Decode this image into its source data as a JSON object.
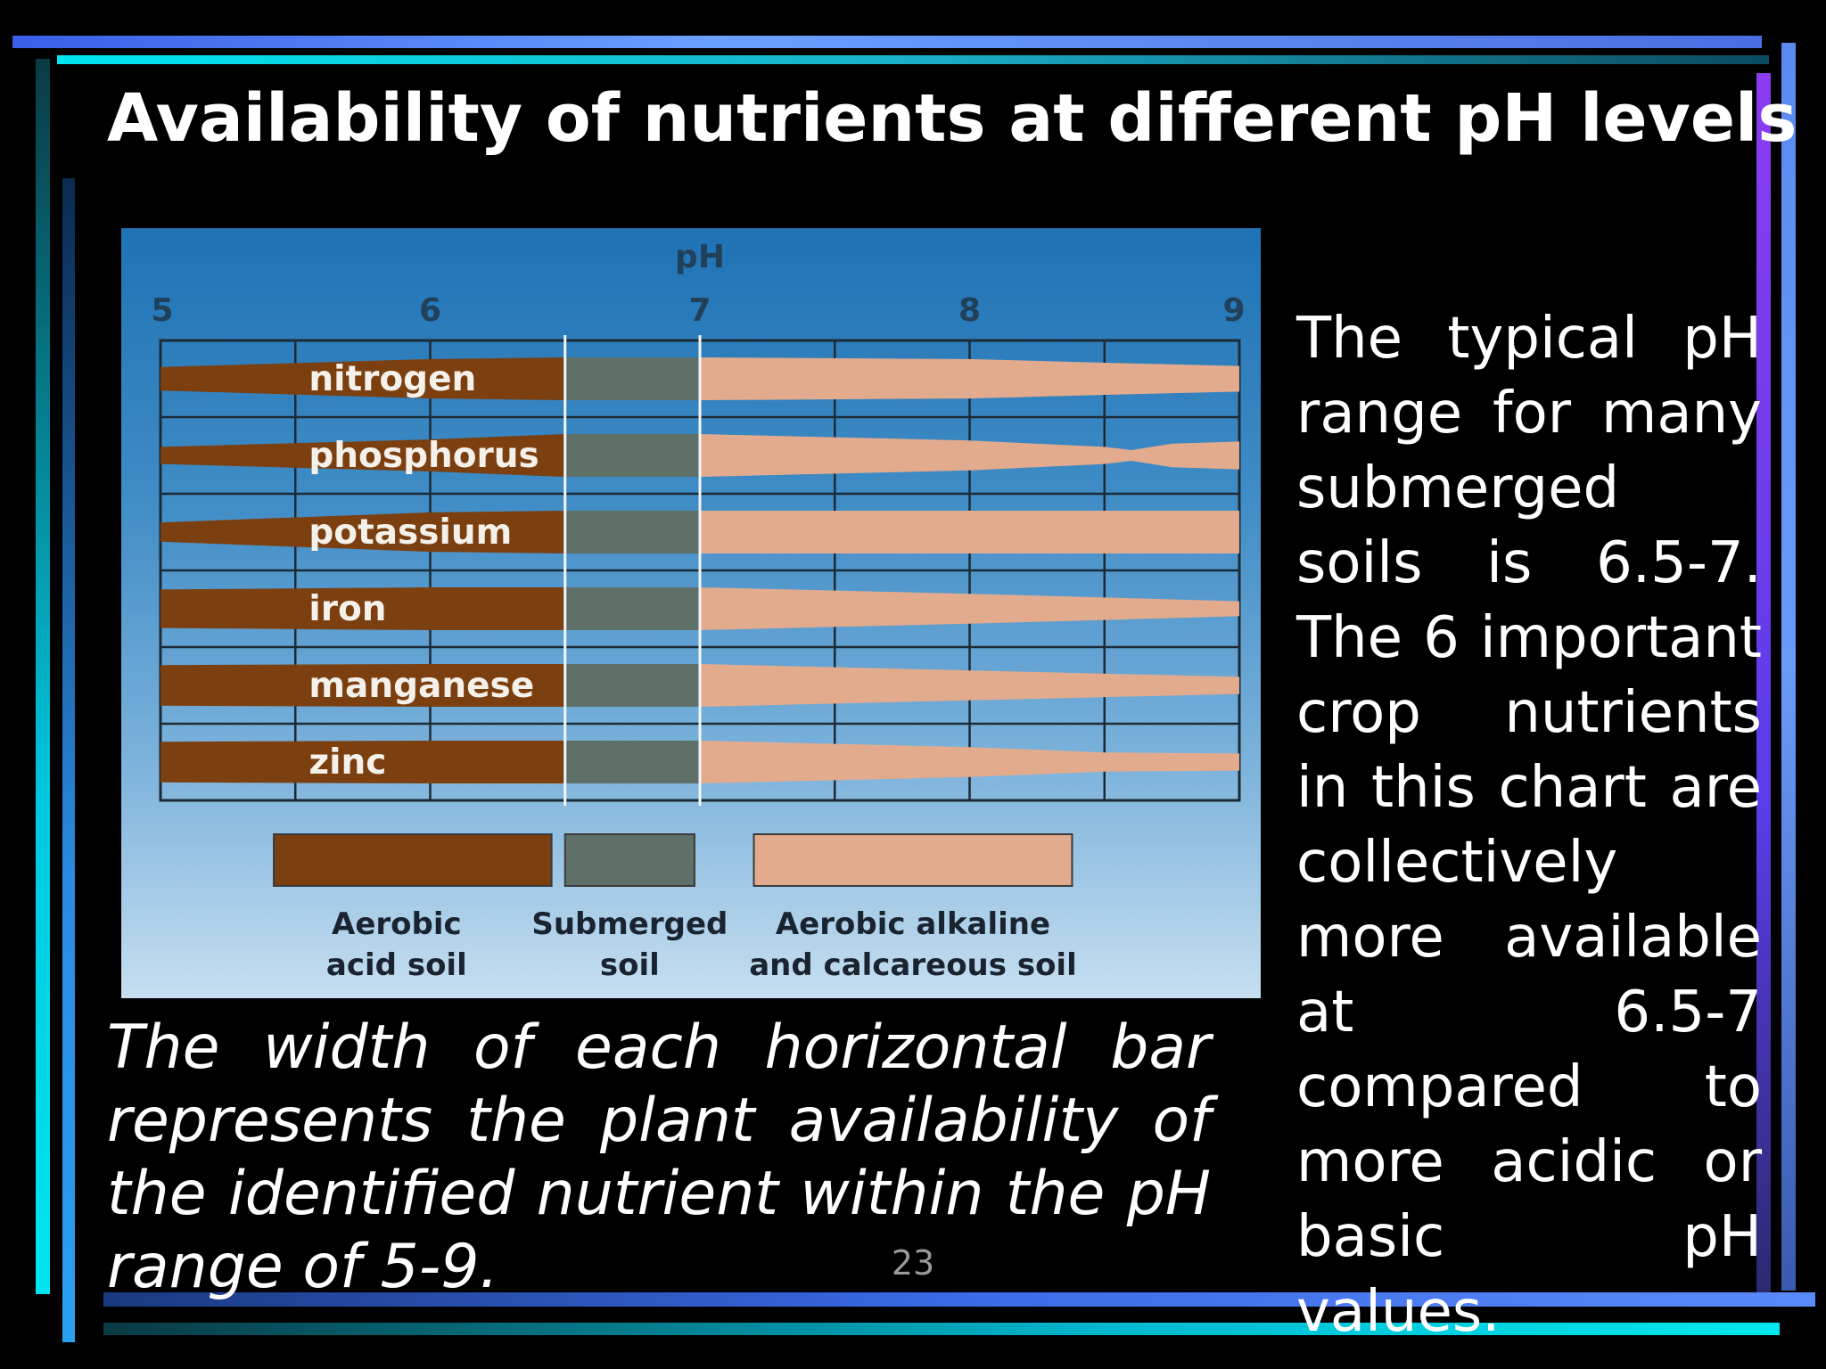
{
  "slide": {
    "title": "Availability of nutrients at different pH levels",
    "caption": "The width of each horizontal bar represents the plant availability of the identified nutrient within the pH range of 5-9.",
    "side_text": "The typical pH range for many submerged soils is 6.5-7. The 6 important crop nutrients in this chart are collectively more available at 6.5-7 compared to more acidic or basic pH values.",
    "slide_number": "23"
  },
  "colors": {
    "acid": "#7b3f10",
    "submerged": "#5e7068",
    "alkaline": "#e3ab8d",
    "grid": "#1c2a36"
  },
  "chart_data": {
    "type": "bar",
    "xlabel": "pH",
    "x_ticks": [
      "5",
      "6",
      "7",
      "8",
      "9"
    ],
    "xlim": [
      5,
      9
    ],
    "boundaries": [
      6.5,
      7
    ],
    "nutrients": [
      {
        "label": "nitrogen",
        "x": [
          5,
          6,
          6.5,
          7,
          8,
          8.5,
          9
        ],
        "w": [
          0.55,
          0.92,
          1.0,
          1.0,
          0.92,
          0.75,
          0.6
        ]
      },
      {
        "label": "phosphorus",
        "x": [
          5,
          6,
          6.5,
          7,
          8,
          8.5,
          8.6,
          8.75,
          9
        ],
        "w": [
          0.4,
          0.75,
          1.0,
          1.0,
          0.7,
          0.4,
          0.25,
          0.55,
          0.65
        ]
      },
      {
        "label": "potassium",
        "x": [
          5,
          6,
          6.5,
          7,
          8,
          9
        ],
        "w": [
          0.45,
          0.92,
          1.0,
          1.0,
          1.0,
          1.0
        ]
      },
      {
        "label": "iron",
        "x": [
          5,
          6,
          6.5,
          7,
          8,
          9
        ],
        "w": [
          0.9,
          1.0,
          1.0,
          1.0,
          0.7,
          0.35
        ]
      },
      {
        "label": "manganese",
        "x": [
          5,
          6,
          6.5,
          7,
          8,
          9
        ],
        "w": [
          0.95,
          1.0,
          1.0,
          1.0,
          0.7,
          0.4
        ]
      },
      {
        "label": "zinc",
        "x": [
          5,
          6,
          6.5,
          7,
          8,
          8.5,
          9
        ],
        "w": [
          0.95,
          1.0,
          1.0,
          1.0,
          0.7,
          0.45,
          0.4
        ]
      }
    ],
    "legend": [
      {
        "key": "acid",
        "label_lines": [
          "Aerobic",
          "acid soil"
        ]
      },
      {
        "key": "submerged",
        "label_lines": [
          "Submerged",
          "soil"
        ]
      },
      {
        "key": "alkaline",
        "label_lines": [
          "Aerobic alkaline",
          "and calcareous soil"
        ]
      }
    ]
  }
}
